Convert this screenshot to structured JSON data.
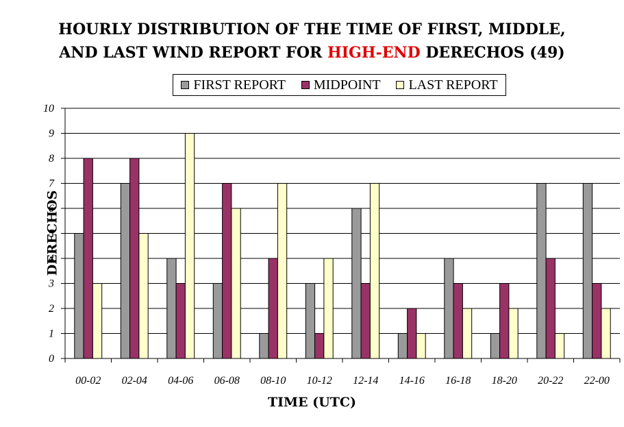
{
  "title": {
    "line1": "HOURLY DISTRIBUTION OF THE TIME OF FIRST, MIDDLE,",
    "line2_pre": "AND LAST WIND REPORT FOR ",
    "line2_highlight": "HIGH-END",
    "line2_post": " DERECHOS (49)"
  },
  "colors": {
    "first": "#9a9a9a",
    "midpoint": "#993366",
    "last": "#ffffcc",
    "highlight": "#e00000"
  },
  "chart_data": {
    "type": "bar",
    "title": "HOURLY DISTRIBUTION OF THE TIME OF FIRST, MIDDLE, AND LAST WIND REPORT FOR HIGH-END DERECHOS (49)",
    "xlabel": "TIME (UTC)",
    "ylabel": "DERECHOS",
    "ylim": [
      0,
      10
    ],
    "yticks": [
      "0",
      "1",
      "2",
      "3",
      "4",
      "5",
      "6",
      "7",
      "8",
      "9",
      "10"
    ],
    "grid": "horizontal",
    "legend": "top-center",
    "categories": [
      "00-02",
      "02-04",
      "04-06",
      "06-08",
      "08-10",
      "10-12",
      "12-14",
      "14-16",
      "16-18",
      "18-20",
      "20-22",
      "22-00"
    ],
    "series": [
      {
        "name": "FIRST REPORT",
        "values": [
          5,
          7,
          4,
          3,
          1,
          3,
          6,
          1,
          4,
          1,
          7,
          7
        ]
      },
      {
        "name": "MIDPOINT",
        "values": [
          8,
          8,
          3,
          7,
          4,
          1,
          3,
          2,
          3,
          3,
          4,
          3
        ]
      },
      {
        "name": "LAST REPORT",
        "values": [
          3,
          5,
          9,
          6,
          7,
          4,
          7,
          1,
          2,
          2,
          1,
          2
        ]
      }
    ]
  }
}
